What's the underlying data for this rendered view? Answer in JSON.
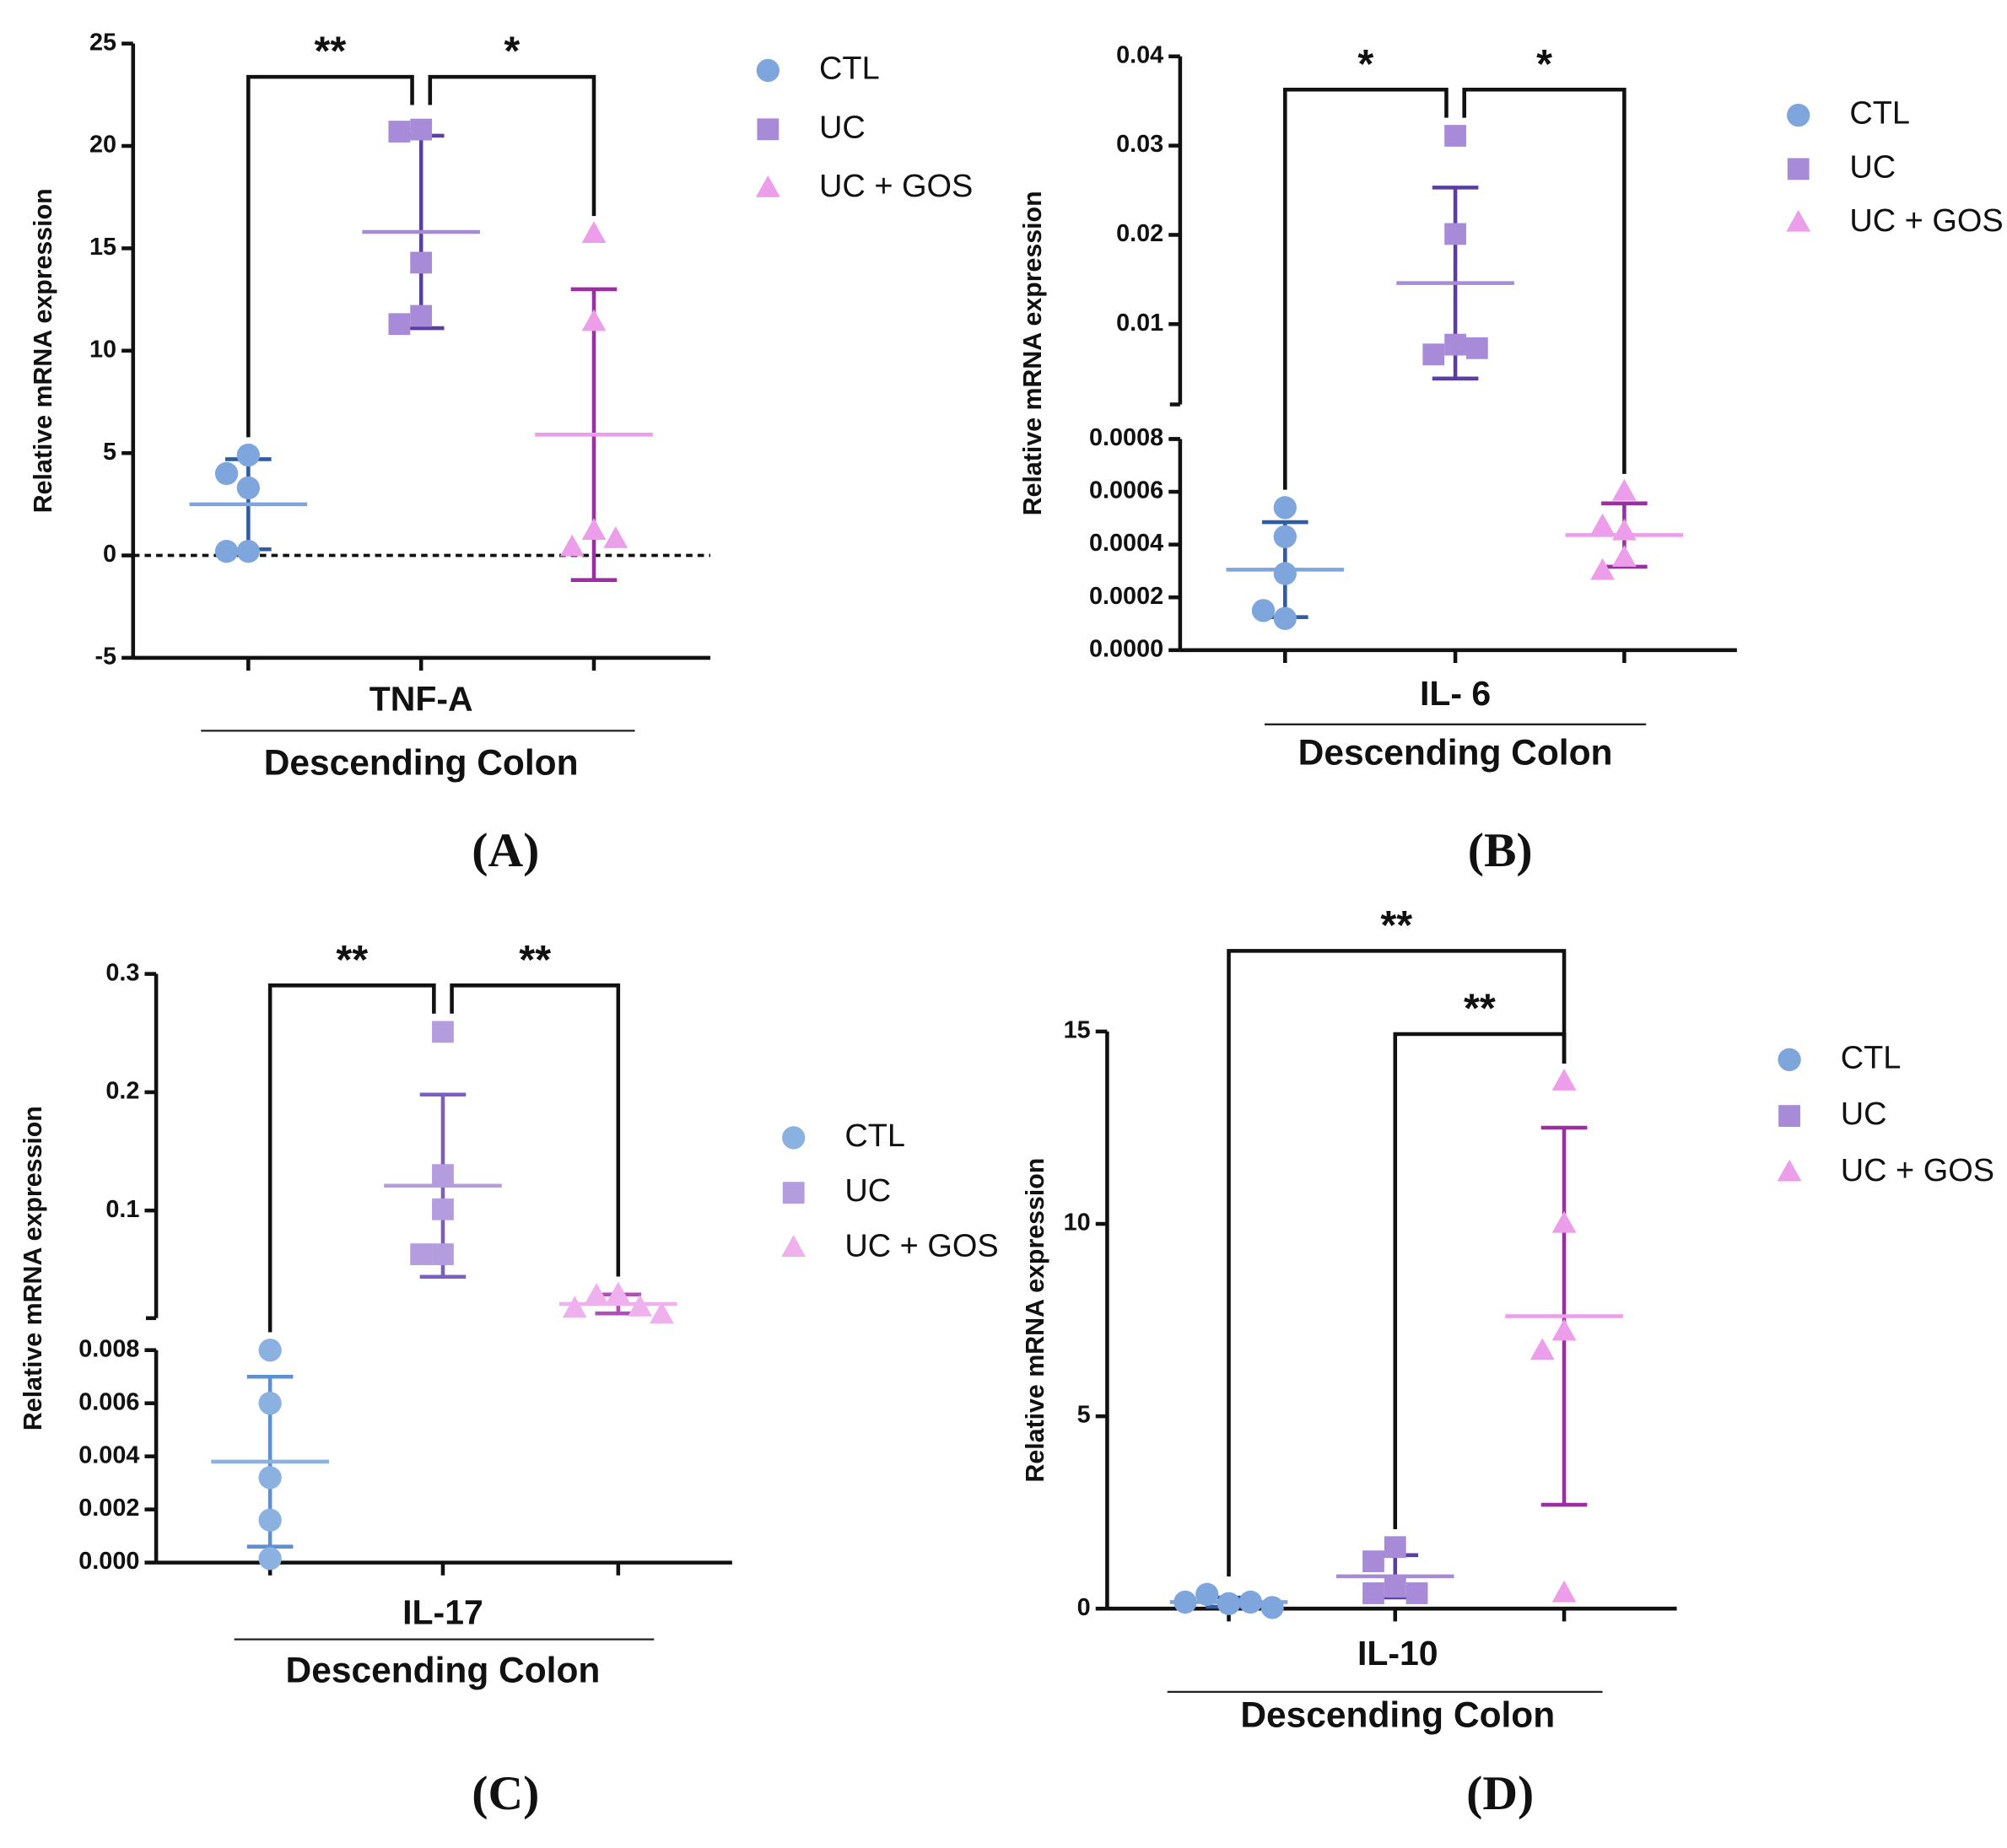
{
  "chart_data": [
    {
      "type": "scatter",
      "panel_label": "(A)",
      "ylabel": "Relative mRNA expression",
      "category": "TNF-A",
      "group_label": "Descending Colon",
      "ylim": [
        -5,
        25
      ],
      "yticks": [
        -5,
        0,
        5,
        10,
        15,
        20,
        25
      ],
      "zero_line": true,
      "series": [
        {
          "name": "CTL",
          "color": "#7ea6dc",
          "bar_color": "#2f5d9f",
          "marker": "circle",
          "values": [
            4.9,
            4.0,
            3.3,
            0.2,
            0.2
          ],
          "mean": 2.5,
          "sd": 2.2
        },
        {
          "name": "UC",
          "color": "#a78bd8",
          "bar_color": "#5a3ea2",
          "marker": "square",
          "values": [
            20.8,
            20.7,
            14.3,
            11.7,
            11.3
          ],
          "mean": 15.8,
          "sd": 4.7
        },
        {
          "name": "UC + GOS",
          "color": "#ec9eea",
          "bar_color": "#9a2f9f",
          "marker": "triangle",
          "values": [
            15.7,
            11.4,
            1.2,
            0.4,
            0.8
          ],
          "mean": 5.9,
          "sd": 7.1
        }
      ],
      "annotations": [
        {
          "text": "**",
          "between": [
            0,
            1
          ]
        },
        {
          "text": "*",
          "between": [
            1,
            2
          ]
        }
      ]
    },
    {
      "type": "scatter",
      "panel_label": "(B)",
      "ylabel": "Relative mRNA expression",
      "category": "IL- 6",
      "group_label": "Descending Colon",
      "ylim": [
        0,
        0.0008
      ],
      "yticks": [
        {
          "value": 0,
          "label": "0.0000"
        },
        0.0002,
        0.0004,
        0.0006,
        0.0008
      ],
      "ylim_upper": [
        0.001,
        0.04
      ],
      "yticks_upper": [
        0.01,
        0.02,
        0.03,
        0.04
      ],
      "series": [
        {
          "name": "CTL",
          "color": "#7ea6dc",
          "bar_color": "#2f5d9f",
          "marker": "circle",
          "values": [
            0.00054,
            0.00043,
            0.00029,
            0.00012,
            0.00015
          ],
          "mean": 0.000305,
          "sd": 0.00018
        },
        {
          "name": "UC",
          "color": "#a78bd8",
          "bar_color": "#5a3ea2",
          "marker": "square",
          "values": [
            0.0311,
            0.0201,
            0.0077,
            0.0066,
            0.0073
          ],
          "mean": 0.0146,
          "sd": 0.0107
        },
        {
          "name": "UC + GOS",
          "color": "#ec9eea",
          "bar_color": "#9a2f9f",
          "marker": "triangle",
          "values": [
            0.0006,
            0.00045,
            0.00047,
            0.00035,
            0.0003
          ],
          "mean": 0.000436,
          "sd": 0.00012
        }
      ],
      "annotations": [
        {
          "text": "*",
          "between": [
            0,
            1
          ]
        },
        {
          "text": "*",
          "between": [
            1,
            2
          ]
        }
      ]
    },
    {
      "type": "scatter",
      "panel_label": "(C)",
      "ylabel": "Relative mRNA expression",
      "category": "IL-17",
      "group_label": "Descending Colon",
      "ylim": [
        0,
        0.008
      ],
      "yticks": [
        {
          "value": 0,
          "label": "0.000"
        },
        0.002,
        0.004,
        0.006,
        0.008
      ],
      "ylim_upper": [
        0.009,
        0.3
      ],
      "yticks_upper": [
        0.1,
        0.2,
        0.3
      ],
      "series": [
        {
          "name": "CTL",
          "color": "#8ab1e0",
          "bar_color": "#5e8fd0",
          "marker": "circle",
          "values": [
            0.008,
            0.006,
            0.0032,
            0.0016,
            0.00015
          ],
          "mean": 0.0038,
          "sd": 0.0032
        },
        {
          "name": "UC",
          "color": "#b49ddf",
          "bar_color": "#7a5fc0",
          "marker": "square",
          "values": [
            0.251,
            0.13,
            0.101,
            0.063,
            0.063
          ],
          "mean": 0.121,
          "sd": 0.077
        },
        {
          "name": "UC + GOS",
          "color": "#efb0ee",
          "bar_color": "#b04fb5",
          "marker": "triangle",
          "values": [
            0.029,
            0.028,
            0.018,
            0.017,
            0.012
          ],
          "mean": 0.021,
          "sd": 0.008
        }
      ],
      "annotations": [
        {
          "text": "**",
          "between": [
            0,
            1
          ]
        },
        {
          "text": "**",
          "between": [
            1,
            2
          ]
        }
      ]
    },
    {
      "type": "scatter",
      "panel_label": "(D)",
      "ylabel": "Relative mRNA expression",
      "category": "IL-10",
      "group_label": "Descending Colon",
      "ylim": [
        0,
        15
      ],
      "yticks": [
        0,
        5,
        10,
        15
      ],
      "series": [
        {
          "name": "CTL",
          "color": "#7ea6dc",
          "bar_color": "#2f5d9f",
          "marker": "circle",
          "values": [
            0.13,
            0.37,
            0.17,
            0.17,
            0.03
          ],
          "mean": 0.17,
          "sd": 0.12
        },
        {
          "name": "UC",
          "color": "#a78bd8",
          "bar_color": "#5a3ea2",
          "marker": "square",
          "values": [
            1.6,
            1.23,
            0.57,
            0.4,
            0.4
          ],
          "mean": 0.84,
          "sd": 0.55
        },
        {
          "name": "UC + GOS",
          "color": "#ec9eea",
          "bar_color": "#9a2f9f",
          "marker": "triangle",
          "values": [
            13.7,
            10.0,
            7.2,
            6.7,
            0.4
          ],
          "mean": 7.6,
          "sd": 4.9
        }
      ],
      "annotations": [
        {
          "text": "**",
          "between": [
            0,
            2
          ]
        },
        {
          "text": "**",
          "between": [
            1,
            2
          ]
        }
      ]
    }
  ]
}
